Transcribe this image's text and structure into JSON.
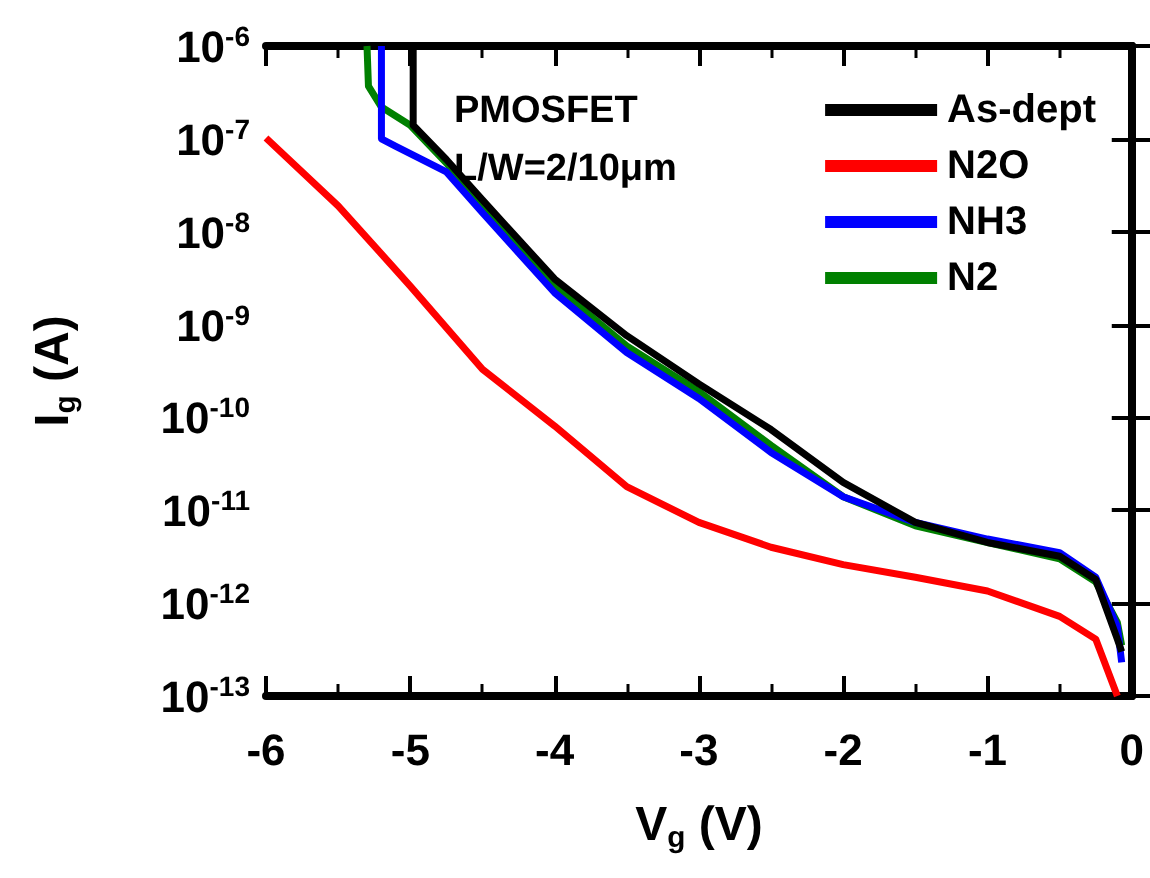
{
  "chart_data": {
    "type": "line",
    "xlabel": "V$_{g}$ (V)",
    "ylabel": "I$_{g}$ (A)",
    "annotations": [
      "PMOSFET",
      "L/W=2/10μm"
    ],
    "log": "y",
    "xlim": [
      -6,
      0
    ],
    "xticks": [
      -6,
      -5,
      -4,
      -3,
      -2,
      -1,
      0
    ],
    "ylim": [
      1e-13,
      1e-06
    ],
    "yticks": [
      {
        "value": 1e-13,
        "label": "10$^{-13}$"
      },
      {
        "value": 1e-12,
        "label": "10$^{-12}$"
      },
      {
        "value": 1e-11,
        "label": "10$^{-11}$"
      },
      {
        "value": 1e-10,
        "label": "10$^{-10}$"
      },
      {
        "value": 1e-09,
        "label": "10$^{-9}$"
      },
      {
        "value": 1e-08,
        "label": "10$^{-8}$"
      },
      {
        "value": 1e-07,
        "label": "10$^{-7}$"
      },
      {
        "value": 1e-06,
        "label": "10$^{-6}$"
      }
    ],
    "grid": false,
    "legend": "top right",
    "marker": "none",
    "line_style": "solid",
    "series": [
      {
        "name": "As-dept",
        "color": "#000000",
        "x": [
          -4.98,
          -4.98,
          -4.75,
          -4.5,
          -4,
          -3.5,
          -3,
          -2.5,
          -2,
          -1.5,
          -1,
          -0.5,
          -0.25,
          -0.1,
          -0.07
        ],
        "values": [
          1e-06,
          1.4e-07,
          6e-08,
          2.2e-08,
          3.1e-09,
          7.6e-10,
          2.3e-10,
          7.4e-11,
          2e-11,
          7.4e-12,
          4.5e-12,
          3.2e-12,
          1.8e-12,
          4.1e-13,
          3e-13
        ]
      },
      {
        "name": "N2O",
        "color": "#ff0000",
        "x": [
          -6,
          -5.5,
          -5,
          -4.5,
          -4,
          -3.5,
          -3,
          -2.5,
          -2,
          -1.5,
          -1,
          -0.5,
          -0.25,
          -0.1
        ],
        "values": [
          1.02e-07,
          1.9e-08,
          2.6e-09,
          3.3e-10,
          8.1e-11,
          1.8e-11,
          7.4e-12,
          4e-12,
          2.6e-12,
          1.9e-12,
          1.35e-12,
          7.2e-13,
          4.1e-13,
          1e-13
        ]
      },
      {
        "name": "NH3",
        "color": "#0000ff",
        "x": [
          -5.2,
          -5.2,
          -5.1,
          -4.75,
          -4.5,
          -4,
          -3.5,
          -3,
          -2.5,
          -2,
          -1.5,
          -1,
          -0.5,
          -0.25,
          -0.1,
          -0.07
        ],
        "values": [
          1e-06,
          1e-07,
          8.3e-08,
          4.4e-08,
          1.6e-08,
          2.2e-09,
          5e-10,
          1.6e-10,
          4.2e-11,
          1.4e-11,
          7.4e-12,
          4.9e-12,
          3.5e-12,
          1.9e-12,
          5.6e-13,
          2.3e-13
        ]
      },
      {
        "name": "N2",
        "color": "#008000",
        "x": [
          -5.3,
          -5.29,
          -5.2,
          -5,
          -4.75,
          -4.5,
          -4,
          -3.5,
          -3,
          -2.5,
          -2,
          -1.5,
          -1,
          -0.5,
          -0.25,
          -0.1,
          -0.07
        ],
        "values": [
          1e-06,
          3.7e-07,
          2.2e-07,
          1.4e-07,
          5.5e-08,
          1.9e-08,
          2.6e-09,
          5.9e-10,
          1.9e-10,
          5e-11,
          1.4e-11,
          6.8e-12,
          4.5e-12,
          3e-12,
          1.7e-12,
          6.2e-13,
          3.5e-13
        ]
      }
    ]
  }
}
